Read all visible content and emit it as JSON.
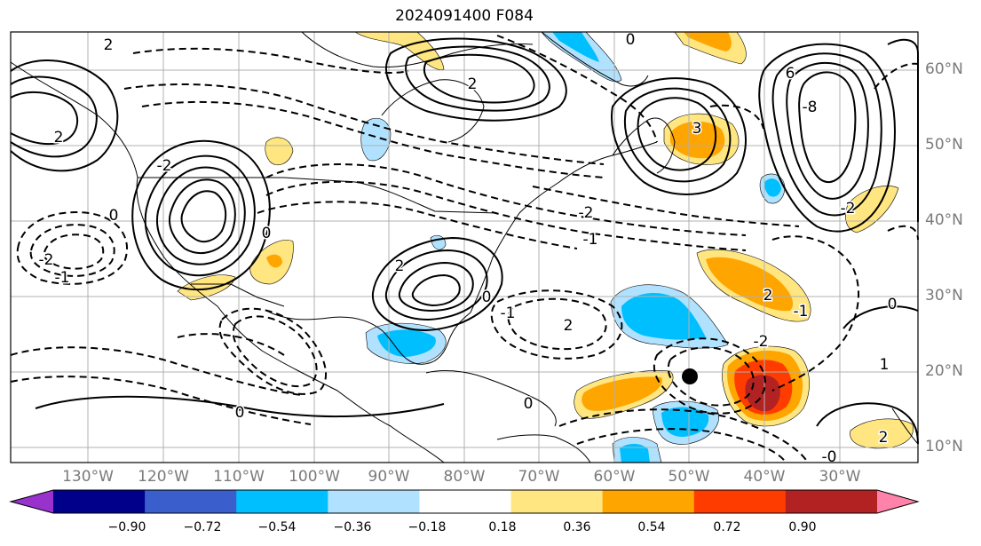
{
  "title": "2024091400 F084",
  "map": {
    "lat_labels": [
      "60°N",
      "50°N",
      "40°N",
      "30°N",
      "20°N",
      "10°N"
    ],
    "lon_labels": [
      "130°W",
      "120°W",
      "110°W",
      "100°W",
      "90°W",
      "80°W",
      "70°W",
      "60°W",
      "50°W",
      "40°W",
      "30°W"
    ],
    "contour_labels": [
      "2",
      "-2",
      "0",
      "-1",
      "2",
      "-2",
      "-1",
      "-2",
      "2",
      "0",
      "-1",
      "2",
      "2",
      "3",
      "6",
      "-8",
      "0",
      "-2",
      "-1",
      "-2",
      "0",
      "1",
      "2",
      "2",
      "-0",
      "0",
      "0",
      "0"
    ],
    "storm_marker": {
      "lat": 19.5,
      "lon": -50.5
    }
  },
  "colorbar": {
    "ticks": [
      "−0.90",
      "−0.72",
      "−0.54",
      "−0.36",
      "−0.18",
      "0.18",
      "0.36",
      "0.54",
      "0.72",
      "0.90"
    ],
    "colors": [
      "#9932cc",
      "#00008b",
      "#3a5fcd",
      "#00bfff",
      "#b0e2ff",
      "#ffffff",
      "#ffe680",
      "#ffa500",
      "#ff3c00",
      "#b22222",
      "#ff82ab"
    ]
  }
}
